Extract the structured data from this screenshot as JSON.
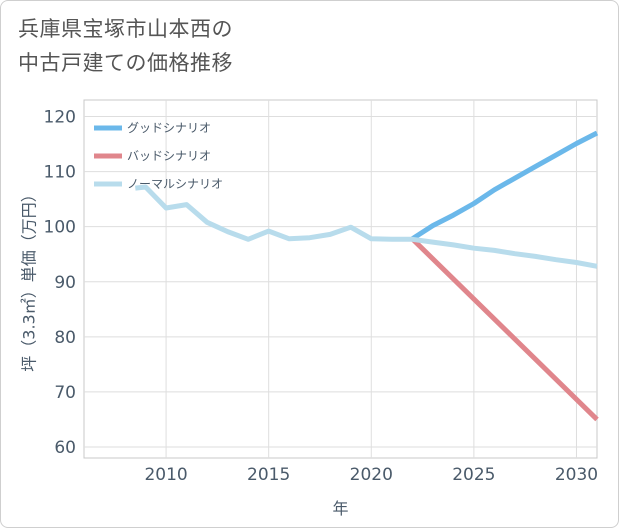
{
  "title": "兵庫県宝塚市山本西の\n中古戸建ての価格推移",
  "chart_data": {
    "type": "line",
    "xlabel": "年",
    "ylabel": "坪（3.3㎡）単価（万円）",
    "xlim": [
      2006,
      2031
    ],
    "ylim": [
      58,
      123
    ],
    "xticks": [
      2010,
      2015,
      2020,
      2025,
      2030
    ],
    "yticks": [
      60,
      70,
      80,
      90,
      100,
      110,
      120
    ],
    "grid": true,
    "legend_position": "top-left",
    "series": [
      {
        "name": "グッドシナリオ",
        "color": "#6bb8ea",
        "points": [
          [
            2022,
            97.8
          ],
          [
            2023,
            100.2
          ],
          [
            2024,
            102.1
          ],
          [
            2025,
            104.2
          ],
          [
            2026,
            106.7
          ],
          [
            2027,
            108.8
          ],
          [
            2028,
            110.9
          ],
          [
            2029,
            113.0
          ],
          [
            2030,
            115.1
          ],
          [
            2031,
            117.0
          ]
        ]
      },
      {
        "name": "バッドシナリオ",
        "color": "#e0868c",
        "points": [
          [
            2022,
            97.8
          ],
          [
            2031,
            65.0
          ]
        ]
      },
      {
        "name": "ノーマルシナリオ",
        "color": "#b8dcec",
        "points": [
          [
            2008.5,
            107.0
          ],
          [
            2009,
            107.2
          ],
          [
            2010,
            103.4
          ],
          [
            2011,
            104.0
          ],
          [
            2012,
            100.8
          ],
          [
            2013,
            99.1
          ],
          [
            2014,
            97.7
          ],
          [
            2015,
            99.2
          ],
          [
            2016,
            97.8
          ],
          [
            2017,
            98.0
          ],
          [
            2018,
            98.6
          ],
          [
            2019,
            99.9
          ],
          [
            2020,
            97.8
          ],
          [
            2021,
            97.7
          ],
          [
            2022,
            97.7
          ],
          [
            2023,
            97.2
          ],
          [
            2024,
            96.7
          ],
          [
            2025,
            96.1
          ],
          [
            2026,
            95.7
          ],
          [
            2027,
            95.1
          ],
          [
            2028,
            94.6
          ],
          [
            2029,
            94.0
          ],
          [
            2030,
            93.5
          ],
          [
            2031,
            92.8
          ]
        ]
      }
    ]
  }
}
